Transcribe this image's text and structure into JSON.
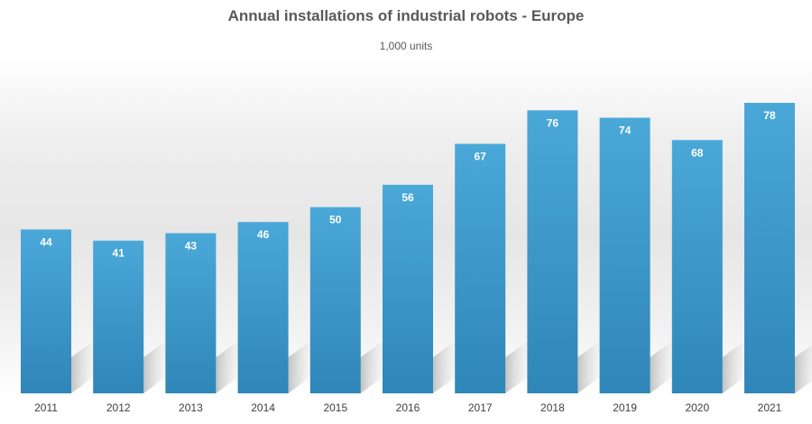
{
  "chart_data": {
    "type": "bar",
    "title": "Annual installations of industrial robots - Europe",
    "subtitle": "1,000 units",
    "xlabel": "",
    "ylabel": "",
    "categories": [
      "2011",
      "2012",
      "2013",
      "2014",
      "2015",
      "2016",
      "2017",
      "2018",
      "2019",
      "2020",
      "2021"
    ],
    "values": [
      44,
      41,
      43,
      46,
      50,
      56,
      67,
      76,
      74,
      68,
      78
    ],
    "data_labels": [
      "44",
      "41",
      "43",
      "46",
      "50",
      "56",
      "67",
      "76",
      "74",
      "68",
      "78"
    ],
    "ylim": [
      0,
      78
    ],
    "grid": false,
    "legend": "none",
    "colors": {
      "bar_top": "#4aa8d8",
      "bar_bottom": "#2f86b8",
      "shadow": "#c9c9c9"
    }
  }
}
